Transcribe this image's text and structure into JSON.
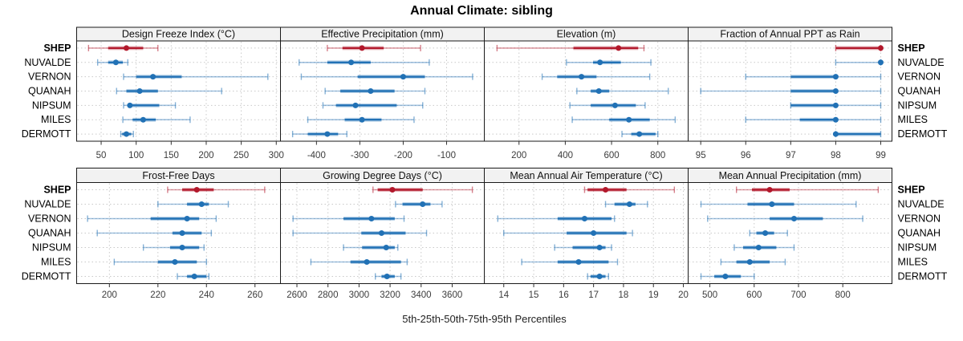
{
  "title": "Annual Climate: sibling",
  "caption": "5th-25th-50th-75th-95th Percentiles",
  "sites": [
    "SHEP",
    "NUVALDE",
    "VERNON",
    "QUANAH",
    "NIPSUM",
    "MILES",
    "DERMOTT"
  ],
  "highlight_site": "SHEP",
  "percentiles": [
    5,
    25,
    50,
    75,
    95
  ],
  "colors": {
    "highlight": "#B2182B",
    "normal": "#2171B5",
    "strip_bg": "#F2F2F2",
    "border": "#1A1A1A",
    "grid": "#C9C9C9"
  },
  "chart_data": [
    {
      "type": "scatter",
      "style": "percentile-interval-dotplot",
      "title": "Design Freeze Index (°C)",
      "xlim": [
        15,
        306
      ],
      "ticks": [
        50,
        100,
        150,
        200,
        250,
        300
      ],
      "series": [
        {
          "site": "SHEP",
          "values": [
            32,
            60,
            86,
            110,
            131
          ]
        },
        {
          "site": "NUVALDE",
          "values": [
            45,
            60,
            71,
            81,
            88
          ]
        },
        {
          "site": "VERNON",
          "values": [
            82,
            100,
            124,
            165,
            288
          ]
        },
        {
          "site": "QUANAH",
          "values": [
            72,
            86,
            105,
            131,
            222
          ]
        },
        {
          "site": "NIPSUM",
          "values": [
            82,
            88,
            91,
            133,
            156
          ]
        },
        {
          "site": "MILES",
          "values": [
            81,
            95,
            110,
            128,
            177
          ]
        },
        {
          "site": "DERMOTT",
          "values": [
            78,
            80,
            86,
            93,
            96
          ]
        }
      ]
    },
    {
      "type": "scatter",
      "style": "percentile-interval-dotplot",
      "title": "Effective Precipitation (mm)",
      "xlim": [
        -483,
        -13
      ],
      "ticks": [
        -400,
        -300,
        -200,
        -100
      ],
      "series": [
        {
          "site": "SHEP",
          "values": [
            -375,
            -340,
            -295,
            -245,
            -160
          ]
        },
        {
          "site": "NUVALDE",
          "values": [
            -440,
            -375,
            -320,
            -275,
            -140
          ]
        },
        {
          "site": "VERNON",
          "values": [
            -435,
            -305,
            -200,
            -150,
            -40
          ]
        },
        {
          "site": "QUANAH",
          "values": [
            -380,
            -345,
            -275,
            -220,
            -150
          ]
        },
        {
          "site": "NIPSUM",
          "values": [
            -385,
            -355,
            -310,
            -215,
            -155
          ]
        },
        {
          "site": "MILES",
          "values": [
            -420,
            -335,
            -295,
            -250,
            -175
          ]
        },
        {
          "site": "DERMOTT",
          "values": [
            -455,
            -420,
            -375,
            -350,
            -330
          ]
        }
      ]
    },
    {
      "type": "scatter",
      "style": "percentile-interval-dotplot",
      "title": "Elevation (m)",
      "xlim": [
        50,
        931
      ],
      "ticks": [
        200,
        400,
        600,
        800
      ],
      "series": [
        {
          "site": "SHEP",
          "values": [
            105,
            435,
            630,
            715,
            740
          ]
        },
        {
          "site": "NUVALDE",
          "values": [
            405,
            520,
            550,
            640,
            770
          ]
        },
        {
          "site": "VERNON",
          "values": [
            300,
            365,
            470,
            535,
            765
          ]
        },
        {
          "site": "QUANAH",
          "values": [
            450,
            510,
            545,
            590,
            845
          ]
        },
        {
          "site": "NIPSUM",
          "values": [
            420,
            510,
            615,
            705,
            745
          ]
        },
        {
          "site": "MILES",
          "values": [
            430,
            590,
            675,
            765,
            875
          ]
        },
        {
          "site": "DERMOTT",
          "values": [
            645,
            685,
            720,
            790,
            800
          ]
        }
      ]
    },
    {
      "type": "scatter",
      "style": "percentile-interval-dotplot",
      "title": "Fraction of Annual PPT as Rain",
      "xlim": [
        94.72,
        99.25
      ],
      "ticks": [
        95,
        96,
        97,
        98,
        99
      ],
      "series": [
        {
          "site": "SHEP",
          "values": [
            98,
            98,
            99,
            99,
            99
          ]
        },
        {
          "site": "NUVALDE",
          "values": [
            98,
            99,
            99,
            99,
            99
          ]
        },
        {
          "site": "VERNON",
          "values": [
            96,
            97,
            98,
            98,
            99
          ]
        },
        {
          "site": "QUANAH",
          "values": [
            95,
            97,
            98,
            98,
            99
          ]
        },
        {
          "site": "NIPSUM",
          "values": [
            97,
            97,
            98,
            98,
            99
          ]
        },
        {
          "site": "MILES",
          "values": [
            96,
            97.2,
            98,
            98,
            99
          ]
        },
        {
          "site": "DERMOTT",
          "values": [
            98,
            98,
            98,
            99,
            99
          ]
        }
      ]
    },
    {
      "type": "scatter",
      "style": "percentile-interval-dotplot",
      "title": "Frost-Free Days",
      "xlim": [
        186.5,
        270.5
      ],
      "ticks": [
        200,
        220,
        240,
        260
      ],
      "series": [
        {
          "site": "SHEP",
          "values": [
            224,
            230,
            236,
            243,
            264
          ]
        },
        {
          "site": "NUVALDE",
          "values": [
            220,
            232,
            238,
            241,
            249
          ]
        },
        {
          "site": "VERNON",
          "values": [
            191,
            217,
            232,
            237,
            244
          ]
        },
        {
          "site": "QUANAH",
          "values": [
            195,
            226,
            230,
            238,
            242
          ]
        },
        {
          "site": "NIPSUM",
          "values": [
            214,
            225,
            230,
            237,
            239
          ]
        },
        {
          "site": "MILES",
          "values": [
            202,
            220,
            227,
            236,
            240
          ]
        },
        {
          "site": "DERMOTT",
          "values": [
            228,
            232,
            235,
            240,
            241
          ]
        }
      ]
    },
    {
      "type": "scatter",
      "style": "percentile-interval-dotplot",
      "title": "Growing Degree Days (°C)",
      "xlim": [
        2494,
        3807
      ],
      "ticks": [
        2600,
        2800,
        3000,
        3200,
        3400,
        3600
      ],
      "series": [
        {
          "site": "SHEP",
          "values": [
            3090,
            3120,
            3215,
            3410,
            3730
          ]
        },
        {
          "site": "NUVALDE",
          "values": [
            3235,
            3280,
            3410,
            3460,
            3535
          ]
        },
        {
          "site": "VERNON",
          "values": [
            2575,
            2900,
            3080,
            3230,
            3290
          ]
        },
        {
          "site": "QUANAH",
          "values": [
            2575,
            3015,
            3145,
            3300,
            3435
          ]
        },
        {
          "site": "NIPSUM",
          "values": [
            2900,
            3020,
            3175,
            3230,
            3250
          ]
        },
        {
          "site": "MILES",
          "values": [
            2690,
            2945,
            3050,
            3270,
            3310
          ]
        },
        {
          "site": "DERMOTT",
          "values": [
            3105,
            3145,
            3180,
            3230,
            3270
          ]
        }
      ]
    },
    {
      "type": "scatter",
      "style": "percentile-interval-dotplot",
      "title": "Mean Annual Air Temperature (°C)",
      "xlim": [
        13.35,
        20.16
      ],
      "ticks": [
        14,
        15,
        16,
        17,
        18,
        19,
        20
      ],
      "series": [
        {
          "site": "SHEP",
          "values": [
            16.7,
            16.8,
            17.4,
            18.1,
            19.7
          ]
        },
        {
          "site": "NUVALDE",
          "values": [
            17.4,
            17.7,
            18.2,
            18.4,
            18.8
          ]
        },
        {
          "site": "VERNON",
          "values": [
            13.8,
            15.8,
            16.7,
            17.6,
            17.7
          ]
        },
        {
          "site": "QUANAH",
          "values": [
            14.0,
            16.1,
            17.0,
            18.1,
            18.3
          ]
        },
        {
          "site": "NIPSUM",
          "values": [
            15.7,
            16.3,
            17.2,
            17.4,
            17.6
          ]
        },
        {
          "site": "MILES",
          "values": [
            14.6,
            15.8,
            16.5,
            17.5,
            17.8
          ]
        },
        {
          "site": "DERMOTT",
          "values": [
            16.8,
            16.9,
            17.2,
            17.4,
            17.5
          ]
        }
      ]
    },
    {
      "type": "scatter",
      "style": "percentile-interval-dotplot",
      "title": "Mean Annual Precipitation (mm)",
      "xlim": [
        451,
        911
      ],
      "ticks": [
        500,
        600,
        700,
        800
      ],
      "series": [
        {
          "site": "SHEP",
          "values": [
            560,
            595,
            635,
            680,
            880
          ]
        },
        {
          "site": "NUVALDE",
          "values": [
            480,
            585,
            640,
            690,
            830
          ]
        },
        {
          "site": "VERNON",
          "values": [
            495,
            635,
            690,
            755,
            845
          ]
        },
        {
          "site": "QUANAH",
          "values": [
            590,
            605,
            625,
            645,
            675
          ]
        },
        {
          "site": "NIPSUM",
          "values": [
            555,
            575,
            610,
            650,
            690
          ]
        },
        {
          "site": "MILES",
          "values": [
            525,
            560,
            590,
            635,
            670
          ]
        },
        {
          "site": "DERMOTT",
          "values": [
            480,
            510,
            535,
            570,
            600
          ]
        }
      ]
    }
  ]
}
